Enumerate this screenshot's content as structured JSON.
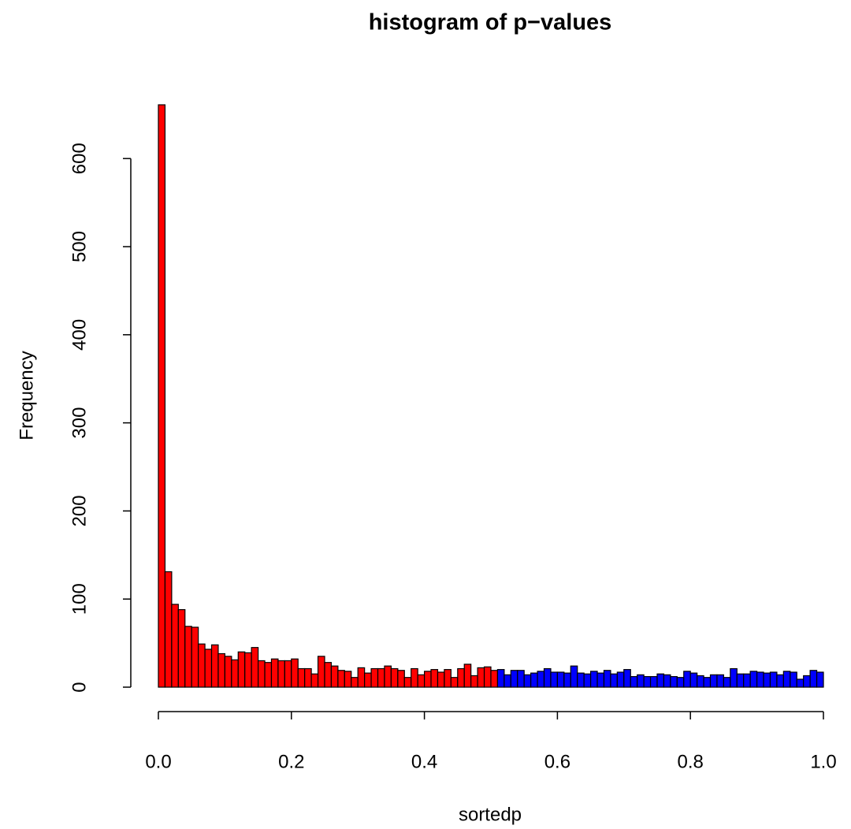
{
  "chart_data": {
    "type": "histogram",
    "title": "histogram of p−values",
    "x_label": "sortedp",
    "y_label": "Frequency",
    "bins": [
      0,
      0.01,
      0.02,
      0.03,
      0.04,
      0.05,
      0.06,
      0.07,
      0.08,
      0.09,
      0.1,
      0.11,
      0.12,
      0.13,
      0.14,
      0.15,
      0.16,
      0.17,
      0.18,
      0.19,
      0.2,
      0.21,
      0.22,
      0.23,
      0.24,
      0.25,
      0.26,
      0.27,
      0.28,
      0.29,
      0.3,
      0.31,
      0.32,
      0.33,
      0.34,
      0.35,
      0.36,
      0.37,
      0.38,
      0.39,
      0.4,
      0.41,
      0.42,
      0.43,
      0.44,
      0.45,
      0.46,
      0.47,
      0.48,
      0.49,
      0.5,
      0.51,
      0.52,
      0.53,
      0.54,
      0.55,
      0.56,
      0.57,
      0.58,
      0.59,
      0.6,
      0.61,
      0.62,
      0.63,
      0.64,
      0.65,
      0.66,
      0.67,
      0.68,
      0.69,
      0.7,
      0.71,
      0.72,
      0.73,
      0.74,
      0.75,
      0.76,
      0.77,
      0.78,
      0.79,
      0.8,
      0.81,
      0.82,
      0.83,
      0.84,
      0.85,
      0.86,
      0.87,
      0.88,
      0.89,
      0.9,
      0.91,
      0.92,
      0.93,
      0.94,
      0.95,
      0.96,
      0.97,
      0.98,
      0.99,
      1
    ],
    "values": [
      661,
      131,
      94,
      88,
      69,
      68,
      49,
      43,
      48,
      38,
      35,
      31,
      40,
      39,
      45,
      30,
      28,
      32,
      30,
      30,
      32,
      21,
      21,
      15,
      35,
      28,
      24,
      19,
      18,
      11,
      22,
      16,
      21,
      21,
      24,
      21,
      19,
      11,
      21,
      14,
      18,
      20,
      17,
      20,
      11,
      21,
      26,
      13,
      22,
      23,
      19,
      20,
      14,
      19,
      19,
      14,
      16,
      18,
      21,
      17,
      17,
      16,
      24,
      16,
      15,
      18,
      16,
      19,
      15,
      17,
      20,
      12,
      14,
      12,
      12,
      15,
      14,
      12,
      11,
      18,
      16,
      13,
      11,
      14,
      14,
      11,
      21,
      15,
      15,
      18,
      17,
      16,
      17,
      14,
      18,
      17,
      9,
      13,
      19,
      17
    ],
    "colors": [
      "#ff0000",
      "#ff0000",
      "#ff0000",
      "#ff0000",
      "#ff0000",
      "#ff0000",
      "#ff0000",
      "#ff0000",
      "#ff0000",
      "#ff0000",
      "#ff0000",
      "#ff0000",
      "#ff0000",
      "#ff0000",
      "#ff0000",
      "#ff0000",
      "#ff0000",
      "#ff0000",
      "#ff0000",
      "#ff0000",
      "#ff0000",
      "#ff0000",
      "#ff0000",
      "#ff0000",
      "#ff0000",
      "#ff0000",
      "#ff0000",
      "#ff0000",
      "#ff0000",
      "#ff0000",
      "#ff0000",
      "#ff0000",
      "#ff0000",
      "#ff0000",
      "#ff0000",
      "#ff0000",
      "#ff0000",
      "#ff0000",
      "#ff0000",
      "#ff0000",
      "#ff0000",
      "#ff0000",
      "#ff0000",
      "#ff0000",
      "#ff0000",
      "#ff0000",
      "#ff0000",
      "#ff0000",
      "#ff0000",
      "#ff0000",
      "#ff0000",
      "#0000ff",
      "#0000ff",
      "#0000ff",
      "#0000ff",
      "#0000ff",
      "#0000ff",
      "#0000ff",
      "#0000ff",
      "#0000ff",
      "#0000ff",
      "#0000ff",
      "#0000ff",
      "#0000ff",
      "#0000ff",
      "#0000ff",
      "#0000ff",
      "#0000ff",
      "#0000ff",
      "#0000ff",
      "#0000ff",
      "#0000ff",
      "#0000ff",
      "#0000ff",
      "#0000ff",
      "#0000ff",
      "#0000ff",
      "#0000ff",
      "#0000ff",
      "#0000ff",
      "#0000ff",
      "#0000ff",
      "#0000ff",
      "#0000ff",
      "#0000ff",
      "#0000ff",
      "#0000ff",
      "#0000ff",
      "#0000ff",
      "#0000ff",
      "#0000ff",
      "#0000ff",
      "#0000ff",
      "#0000ff",
      "#0000ff",
      "#0000ff",
      "#0000ff",
      "#0000ff",
      "#0000ff",
      "#0000ff",
      "#0000ff"
    ],
    "xlim": [
      0,
      1
    ],
    "ylim": [
      0,
      661
    ],
    "xticks": [
      {
        "value": 0,
        "label": "0.0"
      },
      0.2,
      0.4,
      0.6,
      0.8,
      {
        "value": 1,
        "label": "1.0"
      }
    ],
    "yticks": [
      0,
      100,
      200,
      300,
      400,
      500,
      600
    ]
  }
}
